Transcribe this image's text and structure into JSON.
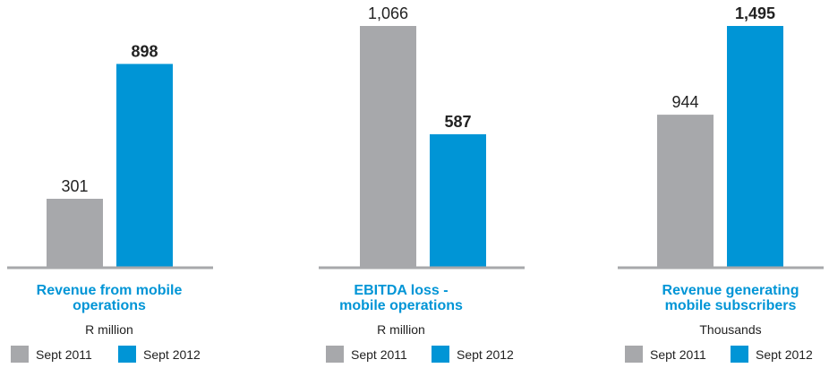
{
  "colors": {
    "sept_2011": "#a7a8ab",
    "sept_2012": "#0095d6",
    "title": "#0095d6",
    "axis": "#a7a8ab",
    "text": "#222222"
  },
  "chart_data": [
    {
      "type": "bar",
      "title": "Revenue from mobile operations",
      "title_lines": [
        "Revenue from mobile",
        "operations"
      ],
      "unit": "R million",
      "categories": [
        "Sept 2011",
        "Sept 2012"
      ],
      "values": [
        301,
        898
      ],
      "value_labels": [
        "301",
        "898"
      ],
      "ylim": [
        0,
        1066
      ],
      "grid": false,
      "legend": "bottom",
      "legend_entries": [
        "Sept 2011",
        "Sept 2012"
      ]
    },
    {
      "type": "bar",
      "title": "EBITDA loss - mobile operations",
      "title_lines": [
        "EBITDA loss -",
        "mobile operations"
      ],
      "unit": "R million",
      "categories": [
        "Sept 2011",
        "Sept 2012"
      ],
      "values": [
        1066,
        587
      ],
      "value_labels": [
        "1,066",
        "587"
      ],
      "ylim": [
        0,
        1066
      ],
      "grid": false,
      "legend": "bottom",
      "legend_entries": [
        "Sept 2011",
        "Sept 2012"
      ]
    },
    {
      "type": "bar",
      "title": "Revenue generating mobile subscribers",
      "title_lines": [
        "Revenue generating",
        "mobile subscribers"
      ],
      "unit": "Thousands",
      "categories": [
        "Sept 2011",
        "Sept 2012"
      ],
      "values": [
        944,
        1495
      ],
      "value_labels": [
        "944",
        "1,495"
      ],
      "ylim": [
        0,
        1495
      ],
      "grid": false,
      "legend": "bottom",
      "legend_entries": [
        "Sept 2011",
        "Sept 2012"
      ]
    }
  ]
}
